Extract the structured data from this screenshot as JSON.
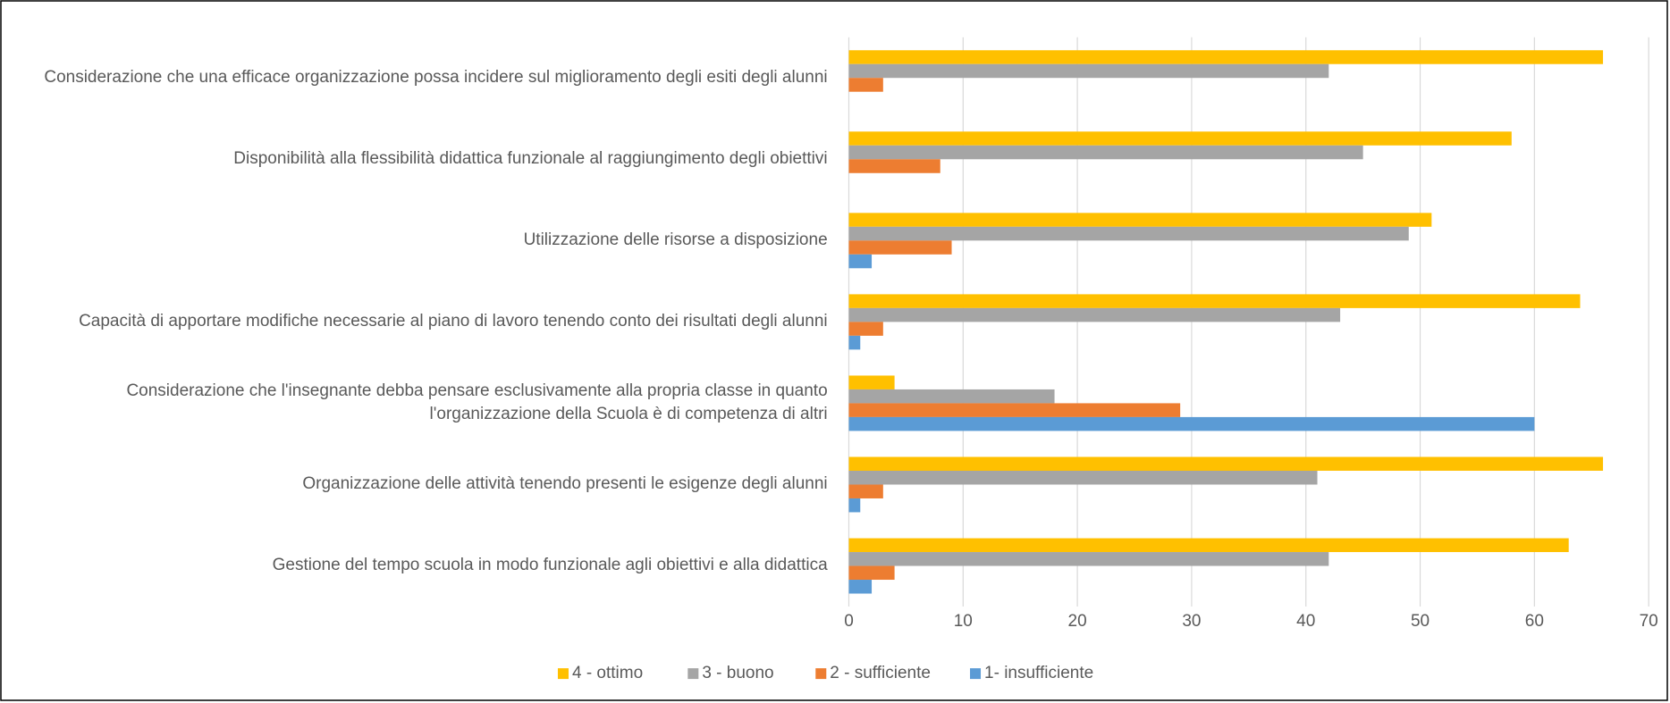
{
  "chart_data": {
    "type": "hbar",
    "categories": [
      "Considerazione che una efficace organizzazione possa incidere sul miglioramento degli esiti degli alunni",
      "Disponibilità alla flessibilità didattica funzionale al raggiungimento degli obiettivi",
      "Utilizzazione delle risorse a disposizione",
      "Capacità di apportare modifiche necessarie al piano di lavoro tenendo conto dei risultati degli alunni",
      "Considerazione che l'insegnante debba pensare esclusivamente alla propria classe in quanto l'organizzazione della Scuola è di competenza di altri",
      "Organizzazione delle attività tenendo presenti le esigenze degli alunni",
      "Gestione del tempo scuola in modo funzionale agli obiettivi e alla didattica"
    ],
    "series": [
      {
        "name": "4 - ottimo",
        "color": "#ffc000",
        "values": [
          66,
          58,
          51,
          64,
          4,
          66,
          63
        ]
      },
      {
        "name": "3 - buono",
        "color": "#a5a5a5",
        "values": [
          42,
          45,
          49,
          43,
          18,
          41,
          42
        ]
      },
      {
        "name": "2 - sufficiente",
        "color": "#ed7d31",
        "values": [
          3,
          8,
          9,
          3,
          29,
          3,
          4
        ]
      },
      {
        "name": "1- insufficiente",
        "color": "#5b9bd5",
        "values": [
          0,
          0,
          2,
          1,
          60,
          1,
          2
        ]
      }
    ],
    "xlim": [
      0,
      70
    ],
    "xticks": [
      0,
      10,
      20,
      30,
      40,
      50,
      60,
      70
    ],
    "grid": true,
    "legend": "bottom"
  }
}
